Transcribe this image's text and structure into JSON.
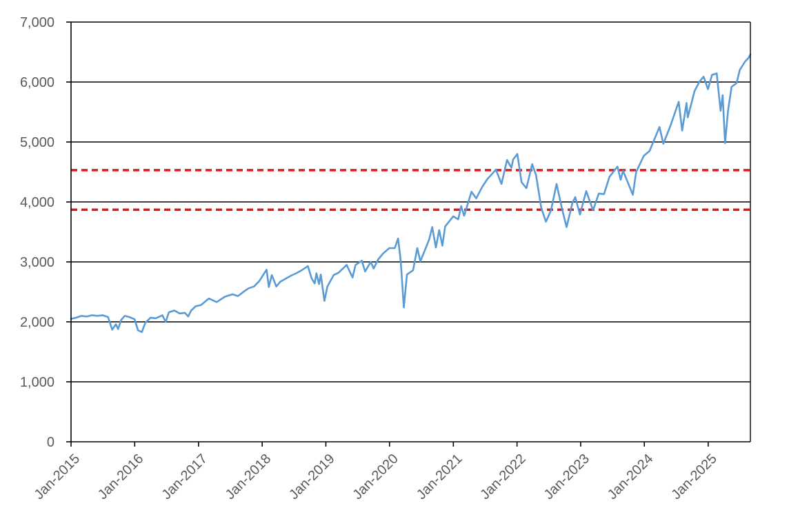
{
  "chart_data": {
    "type": "line",
    "title": "",
    "xlabel": "",
    "ylabel": "",
    "ylim": [
      0,
      7000
    ],
    "xlim": [
      "2015-01-01",
      "2025-08-31"
    ],
    "grid": "horizontal",
    "legend": "none",
    "y_ticks": [
      0,
      1000,
      2000,
      3000,
      4000,
      5000,
      6000,
      7000
    ],
    "y_tick_labels": [
      "0",
      "1,000",
      "2,000",
      "3,000",
      "4,000",
      "5,000",
      "6,000",
      "7,000"
    ],
    "x_ticks": [
      "2015-01-01",
      "2016-01-01",
      "2017-01-01",
      "2018-01-01",
      "2019-01-01",
      "2020-01-01",
      "2021-01-01",
      "2022-01-01",
      "2023-01-01",
      "2024-01-01",
      "2025-01-01"
    ],
    "x_tick_labels": [
      "Jan-2015",
      "Jan-2016",
      "Jan-2017",
      "Jan-2018",
      "Jan-2019",
      "Jan-2020",
      "Jan-2021",
      "Jan-2022",
      "Jan-2023",
      "Jan-2024",
      "Jan-2025"
    ],
    "colors": {
      "series": "#5b9bd5",
      "reference_lines": "#e31a1c",
      "gridlines": "#000000",
      "axis": "#000000",
      "tick_text": "#595959"
    },
    "reference_lines": [
      {
        "y": 4530,
        "style": "dashed"
      },
      {
        "y": 3870,
        "style": "dashed"
      }
    ],
    "series": [
      {
        "points": [
          [
            "2015-01-01",
            2050
          ],
          [
            "2015-02-01",
            2070
          ],
          [
            "2015-03-01",
            2100
          ],
          [
            "2015-04-01",
            2090
          ],
          [
            "2015-05-01",
            2110
          ],
          [
            "2015-06-01",
            2100
          ],
          [
            "2015-07-01",
            2110
          ],
          [
            "2015-08-01",
            2080
          ],
          [
            "2015-08-25",
            1870
          ],
          [
            "2015-09-15",
            1960
          ],
          [
            "2015-09-28",
            1880
          ],
          [
            "2015-10-15",
            2030
          ],
          [
            "2015-11-05",
            2100
          ],
          [
            "2015-12-01",
            2080
          ],
          [
            "2015-12-31",
            2044
          ],
          [
            "2016-01-20",
            1860
          ],
          [
            "2016-02-11",
            1830
          ],
          [
            "2016-03-01",
            1980
          ],
          [
            "2016-04-01",
            2070
          ],
          [
            "2016-05-01",
            2060
          ],
          [
            "2016-06-08",
            2110
          ],
          [
            "2016-06-27",
            2000
          ],
          [
            "2016-07-15",
            2160
          ],
          [
            "2016-08-15",
            2190
          ],
          [
            "2016-09-15",
            2140
          ],
          [
            "2016-10-15",
            2150
          ],
          [
            "2016-11-03",
            2090
          ],
          [
            "2016-11-20",
            2190
          ],
          [
            "2016-12-15",
            2260
          ],
          [
            "2017-01-15",
            2280
          ],
          [
            "2017-03-01",
            2390
          ],
          [
            "2017-04-15",
            2330
          ],
          [
            "2017-06-01",
            2420
          ],
          [
            "2017-07-15",
            2460
          ],
          [
            "2017-08-15",
            2430
          ],
          [
            "2017-09-15",
            2500
          ],
          [
            "2017-10-15",
            2560
          ],
          [
            "2017-11-15",
            2590
          ],
          [
            "2017-12-15",
            2680
          ],
          [
            "2018-01-26",
            2870
          ],
          [
            "2018-02-08",
            2580
          ],
          [
            "2018-02-25",
            2780
          ],
          [
            "2018-03-23",
            2590
          ],
          [
            "2018-04-15",
            2670
          ],
          [
            "2018-05-15",
            2720
          ],
          [
            "2018-06-15",
            2770
          ],
          [
            "2018-07-15",
            2810
          ],
          [
            "2018-08-15",
            2860
          ],
          [
            "2018-09-20",
            2930
          ],
          [
            "2018-10-11",
            2730
          ],
          [
            "2018-10-29",
            2640
          ],
          [
            "2018-11-08",
            2810
          ],
          [
            "2018-11-23",
            2630
          ],
          [
            "2018-12-03",
            2790
          ],
          [
            "2018-12-24",
            2350
          ],
          [
            "2019-01-10",
            2590
          ],
          [
            "2019-02-15",
            2780
          ],
          [
            "2019-03-15",
            2820
          ],
          [
            "2019-04-30",
            2950
          ],
          [
            "2019-06-03",
            2740
          ],
          [
            "2019-06-20",
            2950
          ],
          [
            "2019-07-26",
            3020
          ],
          [
            "2019-08-14",
            2840
          ],
          [
            "2019-09-15",
            3000
          ],
          [
            "2019-10-02",
            2890
          ],
          [
            "2019-10-28",
            3040
          ],
          [
            "2019-11-25",
            3140
          ],
          [
            "2019-12-31",
            3230
          ],
          [
            "2020-01-31",
            3230
          ],
          [
            "2020-02-19",
            3390
          ],
          [
            "2020-03-05",
            3020
          ],
          [
            "2020-03-23",
            2240
          ],
          [
            "2020-04-10",
            2790
          ],
          [
            "2020-05-15",
            2860
          ],
          [
            "2020-06-08",
            3230
          ],
          [
            "2020-06-26",
            3010
          ],
          [
            "2020-08-15",
            3370
          ],
          [
            "2020-09-02",
            3580
          ],
          [
            "2020-09-23",
            3240
          ],
          [
            "2020-10-12",
            3530
          ],
          [
            "2020-10-30",
            3270
          ],
          [
            "2020-11-15",
            3590
          ],
          [
            "2020-12-31",
            3760
          ],
          [
            "2021-01-29",
            3710
          ],
          [
            "2021-02-15",
            3930
          ],
          [
            "2021-03-04",
            3770
          ],
          [
            "2021-04-15",
            4170
          ],
          [
            "2021-05-12",
            4060
          ],
          [
            "2021-06-15",
            4250
          ],
          [
            "2021-07-15",
            4380
          ],
          [
            "2021-08-15",
            4480
          ],
          [
            "2021-09-02",
            4540
          ],
          [
            "2021-10-04",
            4300
          ],
          [
            "2021-11-05",
            4700
          ],
          [
            "2021-11-30",
            4570
          ],
          [
            "2021-12-10",
            4710
          ],
          [
            "2022-01-03",
            4800
          ],
          [
            "2022-01-27",
            4330
          ],
          [
            "2022-02-24",
            4230
          ],
          [
            "2022-03-29",
            4630
          ],
          [
            "2022-04-20",
            4450
          ],
          [
            "2022-05-20",
            3900
          ],
          [
            "2022-06-16",
            3670
          ],
          [
            "2022-07-15",
            3860
          ],
          [
            "2022-08-16",
            4300
          ],
          [
            "2022-09-15",
            3900
          ],
          [
            "2022-10-12",
            3580
          ],
          [
            "2022-11-15",
            3990
          ],
          [
            "2022-12-01",
            4080
          ],
          [
            "2022-12-28",
            3790
          ],
          [
            "2023-01-15",
            3990
          ],
          [
            "2023-02-02",
            4180
          ],
          [
            "2023-03-13",
            3860
          ],
          [
            "2023-04-15",
            4140
          ],
          [
            "2023-05-15",
            4130
          ],
          [
            "2023-06-15",
            4420
          ],
          [
            "2023-07-31",
            4590
          ],
          [
            "2023-08-18",
            4370
          ],
          [
            "2023-09-01",
            4520
          ],
          [
            "2023-10-27",
            4120
          ],
          [
            "2023-11-15",
            4500
          ],
          [
            "2023-12-29",
            4770
          ],
          [
            "2024-01-31",
            4850
          ],
          [
            "2024-03-28",
            5250
          ],
          [
            "2024-04-19",
            4970
          ],
          [
            "2024-05-31",
            5280
          ],
          [
            "2024-07-16",
            5670
          ],
          [
            "2024-08-05",
            5190
          ],
          [
            "2024-08-30",
            5650
          ],
          [
            "2024-09-06",
            5410
          ],
          [
            "2024-10-15",
            5850
          ],
          [
            "2024-11-11",
            6000
          ],
          [
            "2024-12-06",
            6090
          ],
          [
            "2024-12-31",
            5880
          ],
          [
            "2025-01-23",
            6120
          ],
          [
            "2025-02-19",
            6144
          ],
          [
            "2025-03-13",
            5520
          ],
          [
            "2025-03-25",
            5780
          ],
          [
            "2025-04-08",
            4980
          ],
          [
            "2025-04-25",
            5520
          ],
          [
            "2025-05-15",
            5920
          ],
          [
            "2025-06-13",
            5980
          ],
          [
            "2025-07-01",
            6200
          ],
          [
            "2025-07-31",
            6340
          ],
          [
            "2025-08-20",
            6400
          ],
          [
            "2025-08-31",
            6460
          ]
        ]
      }
    ]
  }
}
